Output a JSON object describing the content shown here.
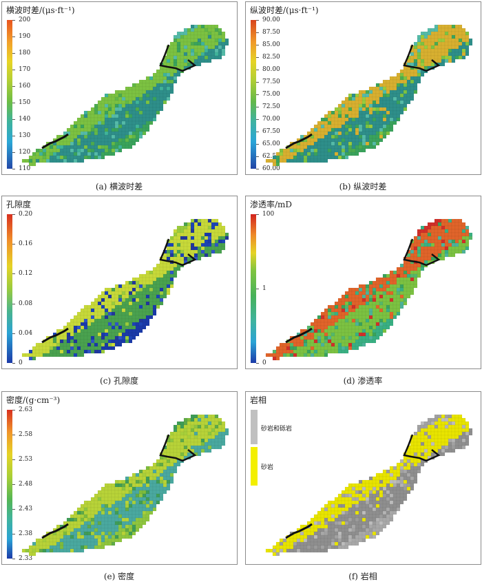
{
  "panels": [
    {
      "id": "a",
      "title": "横波时差/(μs·ft⁻¹)",
      "caption": "(a)  横波时差",
      "ticks": [
        "200",
        "190",
        "180",
        "170",
        "160",
        "150",
        "140",
        "130",
        "120",
        "110"
      ],
      "palette": [
        "#3aa35c",
        "#4cab4f",
        "#62b848",
        "#3fb39a",
        "#55bba8",
        "#7cc242",
        "#2e8f8a"
      ]
    },
    {
      "id": "b",
      "title": "纵波时差/(μs·ft⁻¹)",
      "caption": "(b)  纵波时差",
      "ticks": [
        "90.00",
        "87.50",
        "85.00",
        "82.50",
        "80.00",
        "77.50",
        "75.00",
        "72.50",
        "70.00",
        "67.50",
        "65.00",
        "62.50",
        "60.00"
      ],
      "palette": [
        "#3aa35c",
        "#4cab4f",
        "#7cc242",
        "#9acb3d",
        "#55bba8",
        "#d8b030",
        "#2e8f8a"
      ]
    },
    {
      "id": "c",
      "title": "孔隙度",
      "caption": "(c)  孔隙度",
      "ticks": [
        "0.20",
        "0.16",
        "0.12",
        "0.08",
        "0.04",
        "0"
      ],
      "palette": [
        "#1a3aa8",
        "#1c44b5",
        "#22379b",
        "#2f55c5",
        "#9acb3d",
        "#c7d93a",
        "#4aa24f"
      ]
    },
    {
      "id": "d",
      "title": "渗透率/mD",
      "caption": "(d)  渗透率",
      "ticks": [
        "100",
        "1",
        "0"
      ],
      "palette": [
        "#39b083",
        "#4db39a",
        "#55b86a",
        "#3aa35c",
        "#d0302a",
        "#e0642a",
        "#7cc242"
      ]
    },
    {
      "id": "e",
      "title": "密度/(g·cm⁻³)",
      "caption": "(e)  密度",
      "ticks": [
        "2.63",
        "2.58",
        "2.53",
        "2.48",
        "2.43",
        "2.38",
        "2.33"
      ],
      "palette": [
        "#8fc63f",
        "#7dbb3d",
        "#a8cf3a",
        "#5faa48",
        "#3f9d57",
        "#b8d338",
        "#4aa9a0"
      ]
    },
    {
      "id": "f",
      "title": "岩相",
      "caption": "(f)  岩相",
      "legend": [
        {
          "label": "砂岩和砾岩",
          "color": "#c0c0c0"
        },
        {
          "label": "砂岩",
          "color": "#f3ef00"
        }
      ],
      "palette": [
        "#a9a9a9",
        "#b4b4b4",
        "#9c9c9c",
        "#bdbdbd",
        "#a2a2a2",
        "#e8e400",
        "#8f8f8f"
      ]
    }
  ]
}
